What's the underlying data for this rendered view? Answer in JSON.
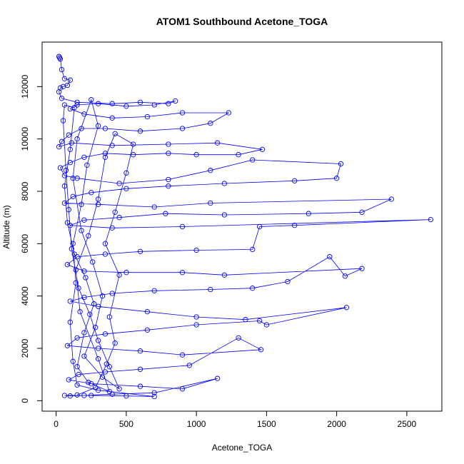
{
  "chart_data": {
    "type": "scatter",
    "title": "ATOM1 Southbound Acetone_TOGA",
    "xlabel": "Acetone_TOGA",
    "ylabel": "Altitude (m)",
    "xlim": [
      -100,
      2750
    ],
    "ylim": [
      -400,
      13700
    ],
    "xticks": [
      0,
      500,
      1000,
      1500,
      2000,
      2500
    ],
    "yticks": [
      0,
      2000,
      4000,
      6000,
      8000,
      10000,
      12000
    ],
    "xtick_labels": [
      "0",
      "500",
      "1000",
      "1500",
      "2000",
      "2500"
    ],
    "ytick_labels": [
      "0",
      "2000",
      "4000",
      "6000",
      "8000",
      "10000",
      "12000"
    ],
    "grid": false,
    "legend": "none",
    "marker": "open-circle",
    "connected": true,
    "series": [
      {
        "color": "#0000ff",
        "points": [
          [
            20,
            13150
          ],
          [
            25,
            13100
          ],
          [
            30,
            13050
          ],
          [
            40,
            12650
          ],
          [
            60,
            12300
          ],
          [
            100,
            12250
          ],
          [
            80,
            12050
          ],
          [
            50,
            12000
          ],
          [
            30,
            11950
          ],
          [
            20,
            11800
          ],
          [
            40,
            11550
          ],
          [
            150,
            11400
          ],
          [
            400,
            11350
          ],
          [
            600,
            11400
          ],
          [
            800,
            11350
          ],
          [
            850,
            11450
          ],
          [
            700,
            11300
          ],
          [
            500,
            11250
          ],
          [
            300,
            11350
          ],
          [
            150,
            11300
          ],
          [
            100,
            11150
          ],
          [
            200,
            10950
          ],
          [
            400,
            10800
          ],
          [
            650,
            10850
          ],
          [
            900,
            11000
          ],
          [
            1230,
            11000
          ],
          [
            1100,
            10600
          ],
          [
            900,
            10400
          ],
          [
            600,
            10300
          ],
          [
            350,
            10400
          ],
          [
            180,
            10400
          ],
          [
            90,
            10150
          ],
          [
            40,
            9900
          ],
          [
            20,
            9700
          ],
          [
            110,
            9850
          ],
          [
            400,
            9750
          ],
          [
            800,
            9800
          ],
          [
            1150,
            9850
          ],
          [
            1470,
            9600
          ],
          [
            1300,
            9400
          ],
          [
            1000,
            9400
          ],
          [
            800,
            9450
          ],
          [
            550,
            9400
          ],
          [
            350,
            9450
          ],
          [
            200,
            9300
          ],
          [
            100,
            9100
          ],
          [
            30,
            8900
          ],
          [
            60,
            8600
          ],
          [
            150,
            8500
          ],
          [
            450,
            8300
          ],
          [
            800,
            8450
          ],
          [
            1100,
            8800
          ],
          [
            1400,
            9200
          ],
          [
            2030,
            9050
          ],
          [
            2000,
            8500
          ],
          [
            1700,
            8400
          ],
          [
            1200,
            8300
          ],
          [
            800,
            8200
          ],
          [
            500,
            8100
          ],
          [
            250,
            7950
          ],
          [
            120,
            7800
          ],
          [
            60,
            7550
          ],
          [
            300,
            7500
          ],
          [
            700,
            7400
          ],
          [
            1100,
            7550
          ],
          [
            2390,
            7700
          ],
          [
            2180,
            7200
          ],
          [
            1800,
            7150
          ],
          [
            1200,
            7100
          ],
          [
            780,
            7150
          ],
          [
            450,
            7000
          ],
          [
            200,
            6900
          ],
          [
            100,
            6700
          ],
          [
            400,
            6600
          ],
          [
            900,
            6650
          ],
          [
            2670,
            6920
          ],
          [
            1700,
            6700
          ],
          [
            1450,
            6650
          ],
          [
            1400,
            5780
          ],
          [
            1000,
            5750
          ],
          [
            600,
            5700
          ],
          [
            350,
            5600
          ],
          [
            150,
            5500
          ],
          [
            80,
            5200
          ],
          [
            200,
            4950
          ],
          [
            500,
            4900
          ],
          [
            900,
            4900
          ],
          [
            1200,
            4800
          ],
          [
            2180,
            5050
          ],
          [
            2060,
            4760
          ],
          [
            1950,
            5500
          ],
          [
            1650,
            4550
          ],
          [
            1400,
            4300
          ],
          [
            1100,
            4250
          ],
          [
            700,
            4200
          ],
          [
            400,
            4100
          ],
          [
            200,
            3950
          ],
          [
            100,
            3800
          ],
          [
            300,
            3600
          ],
          [
            650,
            3400
          ],
          [
            1000,
            3200
          ],
          [
            1350,
            3100
          ],
          [
            2070,
            3560
          ],
          [
            1500,
            2900
          ],
          [
            1450,
            3050
          ],
          [
            1000,
            2900
          ],
          [
            650,
            2700
          ],
          [
            350,
            2550
          ],
          [
            150,
            2400
          ],
          [
            80,
            2100
          ],
          [
            300,
            2000
          ],
          [
            600,
            1900
          ],
          [
            900,
            1750
          ],
          [
            1460,
            1950
          ],
          [
            1300,
            2400
          ],
          [
            950,
            1350
          ],
          [
            600,
            1200
          ],
          [
            350,
            1100
          ],
          [
            160,
            1000
          ],
          [
            90,
            800
          ],
          [
            250,
            650
          ],
          [
            600,
            550
          ],
          [
            900,
            450
          ],
          [
            1150,
            850
          ],
          [
            700,
            300
          ],
          [
            400,
            250
          ],
          [
            200,
            200
          ],
          [
            100,
            180
          ],
          [
            60,
            200
          ],
          [
            250,
            200
          ],
          [
            500,
            180
          ],
          [
            700,
            160
          ],
          [
            300,
            400
          ],
          [
            150,
            600
          ],
          [
            120,
            1500
          ],
          [
            100,
            3000
          ],
          [
            140,
            4500
          ],
          [
            120,
            6000
          ],
          [
            180,
            7500
          ],
          [
            220,
            9000
          ],
          [
            300,
            10500
          ],
          [
            250,
            11500
          ],
          [
            150,
            10000
          ],
          [
            120,
            8500
          ],
          [
            180,
            6500
          ],
          [
            260,
            5300
          ],
          [
            330,
            4000
          ],
          [
            280,
            2800
          ],
          [
            200,
            1700
          ],
          [
            330,
            900
          ],
          [
            450,
            450
          ],
          [
            380,
            1300
          ],
          [
            300,
            2300
          ],
          [
            240,
            3300
          ],
          [
            160,
            4300
          ],
          [
            110,
            5800
          ],
          [
            90,
            7300
          ],
          [
            70,
            8800
          ],
          [
            50,
            10700
          ],
          [
            60,
            11300
          ],
          [
            130,
            11200
          ],
          [
            100,
            9600
          ],
          [
            60,
            8200
          ],
          [
            80,
            6800
          ],
          [
            130,
            5600
          ],
          [
            210,
            4700
          ],
          [
            270,
            3700
          ],
          [
            200,
            2600
          ],
          [
            150,
            1300
          ],
          [
            230,
            700
          ],
          [
            380,
            350
          ],
          [
            300,
            1600
          ],
          [
            170,
            3400
          ],
          [
            140,
            5000
          ],
          [
            230,
            6300
          ],
          [
            300,
            7700
          ],
          [
            350,
            9300
          ],
          [
            420,
            10200
          ],
          [
            550,
            9800
          ],
          [
            500,
            8700
          ],
          [
            420,
            7200
          ],
          [
            350,
            6000
          ],
          [
            450,
            4800
          ],
          [
            380,
            3200
          ],
          [
            420,
            2200
          ],
          [
            360,
            1400
          ],
          [
            280,
            500
          ],
          [
            150,
            220
          ]
        ]
      }
    ]
  }
}
